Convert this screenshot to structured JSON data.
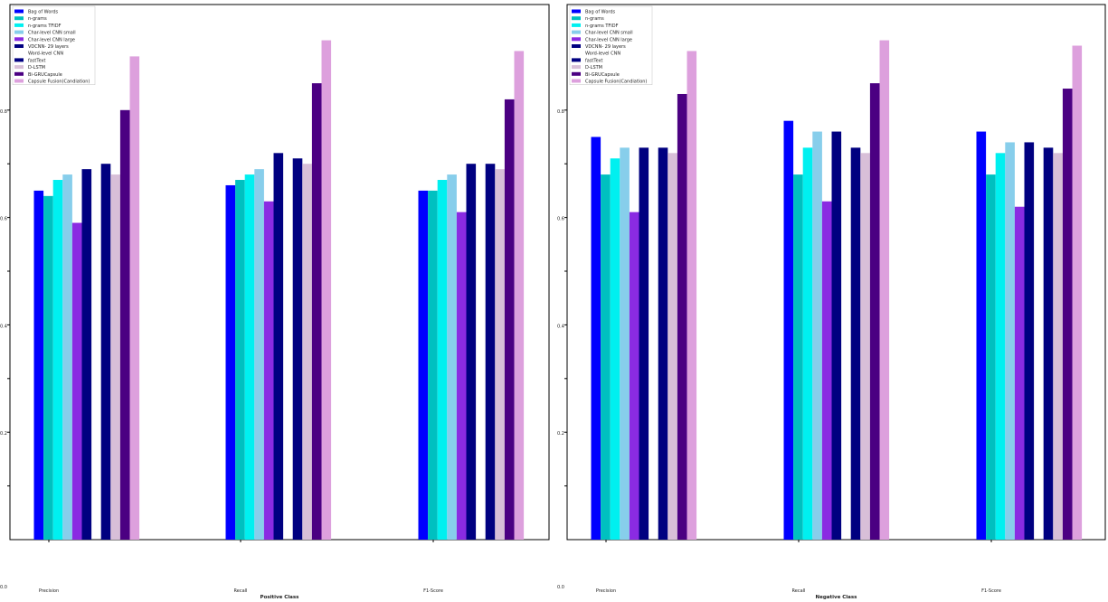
{
  "chart_data": [
    {
      "type": "bar",
      "xlabel": "Positive Class",
      "ylabel": "",
      "ylim": [
        0,
        1
      ],
      "y_ticks": [
        "0.0",
        "0.2",
        "0.4",
        "0.6",
        "0.8"
      ],
      "grid": false,
      "legend_position": "top-left",
      "categories": [
        "Precision",
        "Recall",
        "F1-Score"
      ],
      "series": [
        {
          "name": "Bag of Words",
          "color": "#0000ff",
          "values": [
            0.65,
            0.66,
            0.65
          ]
        },
        {
          "name": "n-grams",
          "color": "#00c0c0",
          "values": [
            0.64,
            0.67,
            0.65
          ]
        },
        {
          "name": "n-grams TFIDF",
          "color": "#00f0f0",
          "values": [
            0.67,
            0.68,
            0.67
          ]
        },
        {
          "name": "Char-level CNN small",
          "color": "#87ceeb",
          "values": [
            0.68,
            0.69,
            0.68
          ]
        },
        {
          "name": "Char-level CNN large",
          "color": "#8a2be2",
          "values": [
            0.59,
            0.63,
            0.61
          ]
        },
        {
          "name": "VDCNN- 29 layers",
          "color": "#000080",
          "values": [
            0.69,
            0.72,
            0.7
          ]
        },
        {
          "name": "Word-level CNN",
          "color": "#ffffff",
          "values": [
            0.0,
            0.0,
            0.0
          ]
        },
        {
          "name": "fastText",
          "color": "#000080",
          "values": [
            0.7,
            0.71,
            0.7
          ]
        },
        {
          "name": "D-LSTM",
          "color": "#d8bfd8",
          "values": [
            0.68,
            0.7,
            0.69
          ]
        },
        {
          "name": "Bi-GRUCapsule",
          "color": "#4b0082",
          "values": [
            0.8,
            0.85,
            0.82
          ]
        },
        {
          "name": "Capsule Fusion(Candiation)",
          "color": "#dda0dd",
          "values": [
            0.9,
            0.93,
            0.91
          ]
        }
      ]
    },
    {
      "type": "bar",
      "xlabel": "Negative Class",
      "ylabel": "",
      "ylim": [
        0,
        1
      ],
      "y_ticks": [
        "0.0",
        "0.2",
        "0.4",
        "0.6",
        "0.8"
      ],
      "grid": false,
      "legend_position": "top-left",
      "categories": [
        "Precision",
        "Recall",
        "F1-Score"
      ],
      "series": [
        {
          "name": "Bag of Words",
          "color": "#0000ff",
          "values": [
            0.75,
            0.78,
            0.76
          ]
        },
        {
          "name": "n-grams",
          "color": "#00c0c0",
          "values": [
            0.68,
            0.68,
            0.68
          ]
        },
        {
          "name": "n-grams TFIDF",
          "color": "#00f0f0",
          "values": [
            0.71,
            0.73,
            0.72
          ]
        },
        {
          "name": "Char-level CNN small",
          "color": "#87ceeb",
          "values": [
            0.73,
            0.76,
            0.74
          ]
        },
        {
          "name": "Char-level CNN large",
          "color": "#8a2be2",
          "values": [
            0.61,
            0.63,
            0.62
          ]
        },
        {
          "name": "VDCNN- 29 layers",
          "color": "#000080",
          "values": [
            0.73,
            0.76,
            0.74
          ]
        },
        {
          "name": "Word-level CNN",
          "color": "#ffffff",
          "values": [
            0.0,
            0.0,
            0.0
          ]
        },
        {
          "name": "fastText",
          "color": "#000080",
          "values": [
            0.73,
            0.73,
            0.73
          ]
        },
        {
          "name": "D-LSTM",
          "color": "#d8bfd8",
          "values": [
            0.72,
            0.72,
            0.72
          ]
        },
        {
          "name": "Bi-GRUCapsule",
          "color": "#4b0082",
          "values": [
            0.83,
            0.85,
            0.84
          ]
        },
        {
          "name": "Capsule Fusion(Candiation)",
          "color": "#dda0dd",
          "values": [
            0.91,
            0.93,
            0.92
          ]
        }
      ]
    }
  ]
}
